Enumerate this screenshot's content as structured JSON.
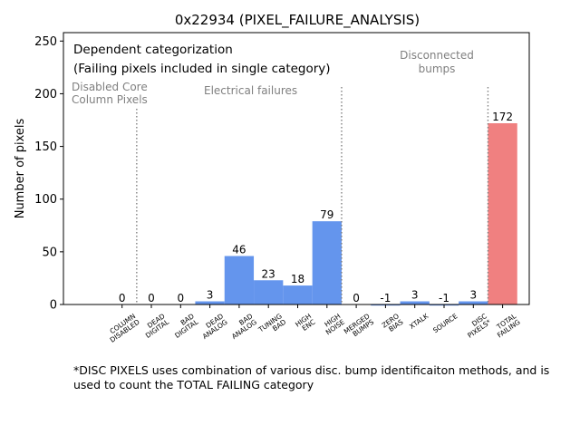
{
  "chart_data": {
    "type": "bar",
    "title": "0x22934 (PIXEL_FAILURE_ANALYSIS)",
    "ylabel": "Number of pixels",
    "xlabel": "",
    "ylim": [
      0,
      258
    ],
    "yticks": [
      0,
      50,
      100,
      150,
      200,
      250
    ],
    "grid": false,
    "categories": [
      "COLUMN DISABLED",
      "DEAD DIGITAL",
      "BAD DIGITAL",
      "DEAD ANALOG",
      "BAD ANALOG",
      "TUNING BAD",
      "HIGH ENC",
      "HIGH NOISE",
      "MERGED BUMPS",
      "ZERO BIAS",
      "XTALK",
      "SOURCE",
      "DISC PIXELS*",
      "TOTAL FAILING"
    ],
    "tick_labels": [
      [
        "COLUMN",
        "DISABLED"
      ],
      [
        "DEAD",
        "DIGITAL"
      ],
      [
        "BAD",
        "DIGITAL"
      ],
      [
        "DEAD",
        "ANALOG"
      ],
      [
        "BAD",
        "ANALOG"
      ],
      [
        "TUNING",
        "BAD"
      ],
      [
        "HIGH",
        "ENC"
      ],
      [
        "HIGH",
        "NOISE"
      ],
      [
        "MERGED",
        "BUMPS"
      ],
      [
        "ZERO",
        "BIAS"
      ],
      [
        "XTALK"
      ],
      [
        "SOURCE"
      ],
      [
        "DISC",
        "PIXELS*"
      ],
      [
        "TOTAL",
        "FAILING"
      ]
    ],
    "values": [
      0,
      0,
      0,
      3,
      46,
      23,
      18,
      79,
      0,
      -1,
      3,
      -1,
      3,
      172
    ],
    "data_labels": [
      "0",
      "0",
      "0",
      "3",
      "46",
      "23",
      "18",
      "79",
      "0",
      "-1",
      "3",
      "-1",
      "3",
      "172"
    ],
    "bar_colors": [
      "#6495ed",
      "#6495ed",
      "#6495ed",
      "#6495ed",
      "#6495ed",
      "#6495ed",
      "#6495ed",
      "#6495ed",
      "#6495ed",
      "#6495ed",
      "#6495ed",
      "#6495ed",
      "#6495ed",
      "#f08080"
    ],
    "separators_after": [
      0,
      7,
      12
    ],
    "annotations": {
      "heading_line1": "Dependent categorization",
      "heading_line2": "(Failing pixels included in single category)",
      "disabled_core": [
        "Disabled Core",
        "Column Pixels"
      ],
      "electrical": "Electrical failures",
      "disconnected": [
        "Disconnected",
        "bumps"
      ]
    },
    "footnote": "*DISC PIXELS uses combination of various disc. bump identificaiton methods, and is used to count the TOTAL FAILING category"
  },
  "colors": {
    "bar": "#6495ed",
    "total_bar": "#f08080",
    "annotation_text": "#808080",
    "separator": "#808080"
  }
}
